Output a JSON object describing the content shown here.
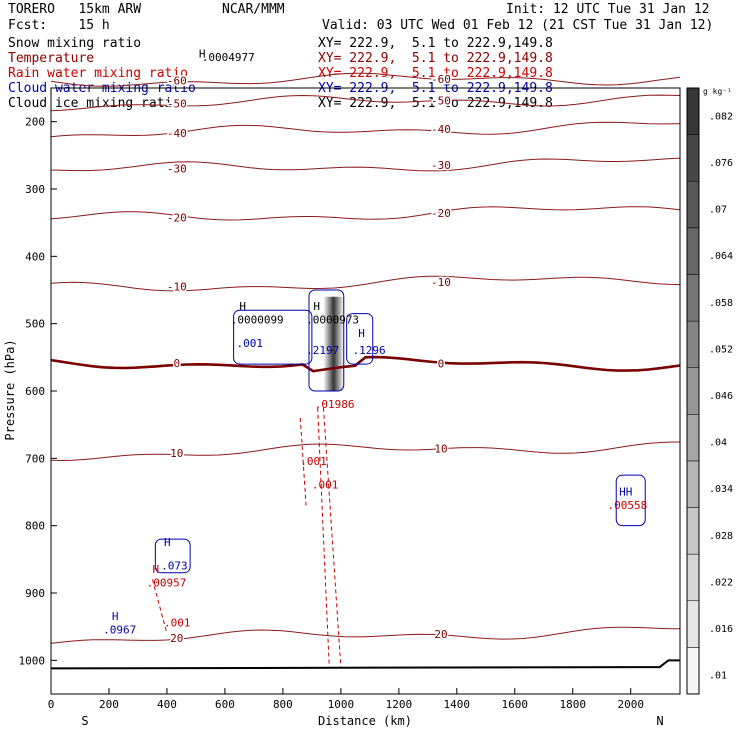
{
  "header": {
    "model": "TORERO   15km ARW",
    "forecast": "Fcst:    15 h",
    "center": "NCAR/MMM",
    "init": "Init: 12 UTC Tue 31 Jan 12",
    "valid": "Valid: 03 UTC Wed 01 Feb 12 (21 CST Tue 31 Jan 12)"
  },
  "fields": [
    {
      "name": "Snow mixing ratio",
      "color": "#000000",
      "xy": "XY= 222.9,  5.1 to 222.9,149.8"
    },
    {
      "name": "Temperature",
      "color": "#8b0000",
      "xy": "XY= 222.9,  5.1 to 222.9,149.8"
    },
    {
      "name": "Rain water mixing ratio",
      "color": "#cc0000",
      "xy": "XY= 222.9,  5.1 to 222.9,149.8"
    },
    {
      "name": "Cloud water mixing ratio",
      "color": "#0000aa",
      "xy": "XY= 222.9,  5.1 to 222.9,149.8"
    },
    {
      "name": "Cloud ice mixing ratio",
      "color": "#000000",
      "xy": "XY= 222.9,  5.1 to 222.9,149.8"
    }
  ],
  "chart_data": {
    "type": "contour-cross-section",
    "xlabel": "Distance (km)",
    "ylabel": "Pressure (hPa)",
    "xlim": [
      0,
      2170
    ],
    "ylim": [
      150,
      1050
    ],
    "x_ticks": [
      0,
      200,
      400,
      600,
      800,
      1000,
      1200,
      1400,
      1600,
      1800,
      2000
    ],
    "y_ticks": [
      200,
      300,
      400,
      500,
      600,
      700,
      800,
      900,
      1000
    ],
    "x_end_labels": {
      "left": "S",
      "right": "N"
    },
    "colorbar": {
      "unit": "g kg⁻¹",
      "labels": [
        ".01",
        ".016",
        ".022",
        ".028",
        ".034",
        ".04",
        ".046",
        ".052",
        ".058",
        ".064",
        ".07",
        ".076",
        ".082"
      ]
    },
    "temperature_contours": [
      {
        "value": -60,
        "label": "-60",
        "p_left": 140,
        "p_right": 135
      },
      {
        "value": -50,
        "label": "-50",
        "p_left": 175,
        "p_right": 165
      },
      {
        "value": -40,
        "label": "-40",
        "p_left": 220,
        "p_right": 205
      },
      {
        "value": -30,
        "label": "-30",
        "p_left": 272,
        "p_right": 260
      },
      {
        "value": -20,
        "label": "-20",
        "p_left": 345,
        "p_right": 330
      },
      {
        "value": -10,
        "label": "-10",
        "p_left": 448,
        "p_right": 432
      },
      {
        "value": 0,
        "label": "0",
        "p_left": 558,
        "p_right": 560
      },
      {
        "value": 10,
        "label": "10",
        "p_left": 695,
        "p_right": 680
      },
      {
        "value": 20,
        "label": "20",
        "p_left": 970,
        "p_right": 955
      }
    ],
    "annotations": [
      {
        "text": "H",
        "x": 510,
        "p": 105,
        "color": "#000000"
      },
      {
        "text": ".0004977",
        "x": 520,
        "p": 110,
        "color": "#000000"
      },
      {
        "text": "H",
        "x": 650,
        "p": 480,
        "color": "#000000"
      },
      {
        "text": ".0000099",
        "x": 620,
        "p": 500,
        "color": "#000000"
      },
      {
        "text": "H",
        "x": 905,
        "p": 480,
        "color": "#000000"
      },
      {
        "text": ".0000973",
        "x": 880,
        "p": 500,
        "color": "#000000"
      },
      {
        "text": ".001",
        "x": 640,
        "p": 535,
        "color": "#0000aa"
      },
      {
        "text": ".2197",
        "x": 880,
        "p": 545,
        "color": "#0000aa"
      },
      {
        "text": "H",
        "x": 1060,
        "p": 520,
        "color": "#0000aa"
      },
      {
        "text": ".1296",
        "x": 1040,
        "p": 545,
        "color": "#0000aa"
      },
      {
        "text": ".01986",
        "x": 910,
        "p": 625,
        "color": "#cc0000"
      },
      {
        "text": ".001",
        "x": 860,
        "p": 710,
        "color": "#cc0000"
      },
      {
        "text": ".001",
        "x": 900,
        "p": 745,
        "color": "#cc0000"
      },
      {
        "text": "H",
        "x": 390,
        "p": 830,
        "color": "#0000aa"
      },
      {
        "text": ".073",
        "x": 380,
        "p": 865,
        "color": "#0000aa"
      },
      {
        "text": "H",
        "x": 350,
        "p": 870,
        "color": "#cc0000"
      },
      {
        "text": ".00957",
        "x": 330,
        "p": 890,
        "color": "#cc0000"
      },
      {
        "text": ".001",
        "x": 390,
        "p": 950,
        "color": "#cc0000"
      },
      {
        "text": "H",
        "x": 210,
        "p": 940,
        "color": "#0000aa"
      },
      {
        "text": ".0967",
        "x": 180,
        "p": 960,
        "color": "#0000aa"
      },
      {
        "text": "HH",
        "x": 1960,
        "p": 755,
        "color": "#0000aa"
      },
      {
        "text": ".00558",
        "x": 1920,
        "p": 775,
        "color": "#cc0000"
      }
    ]
  }
}
